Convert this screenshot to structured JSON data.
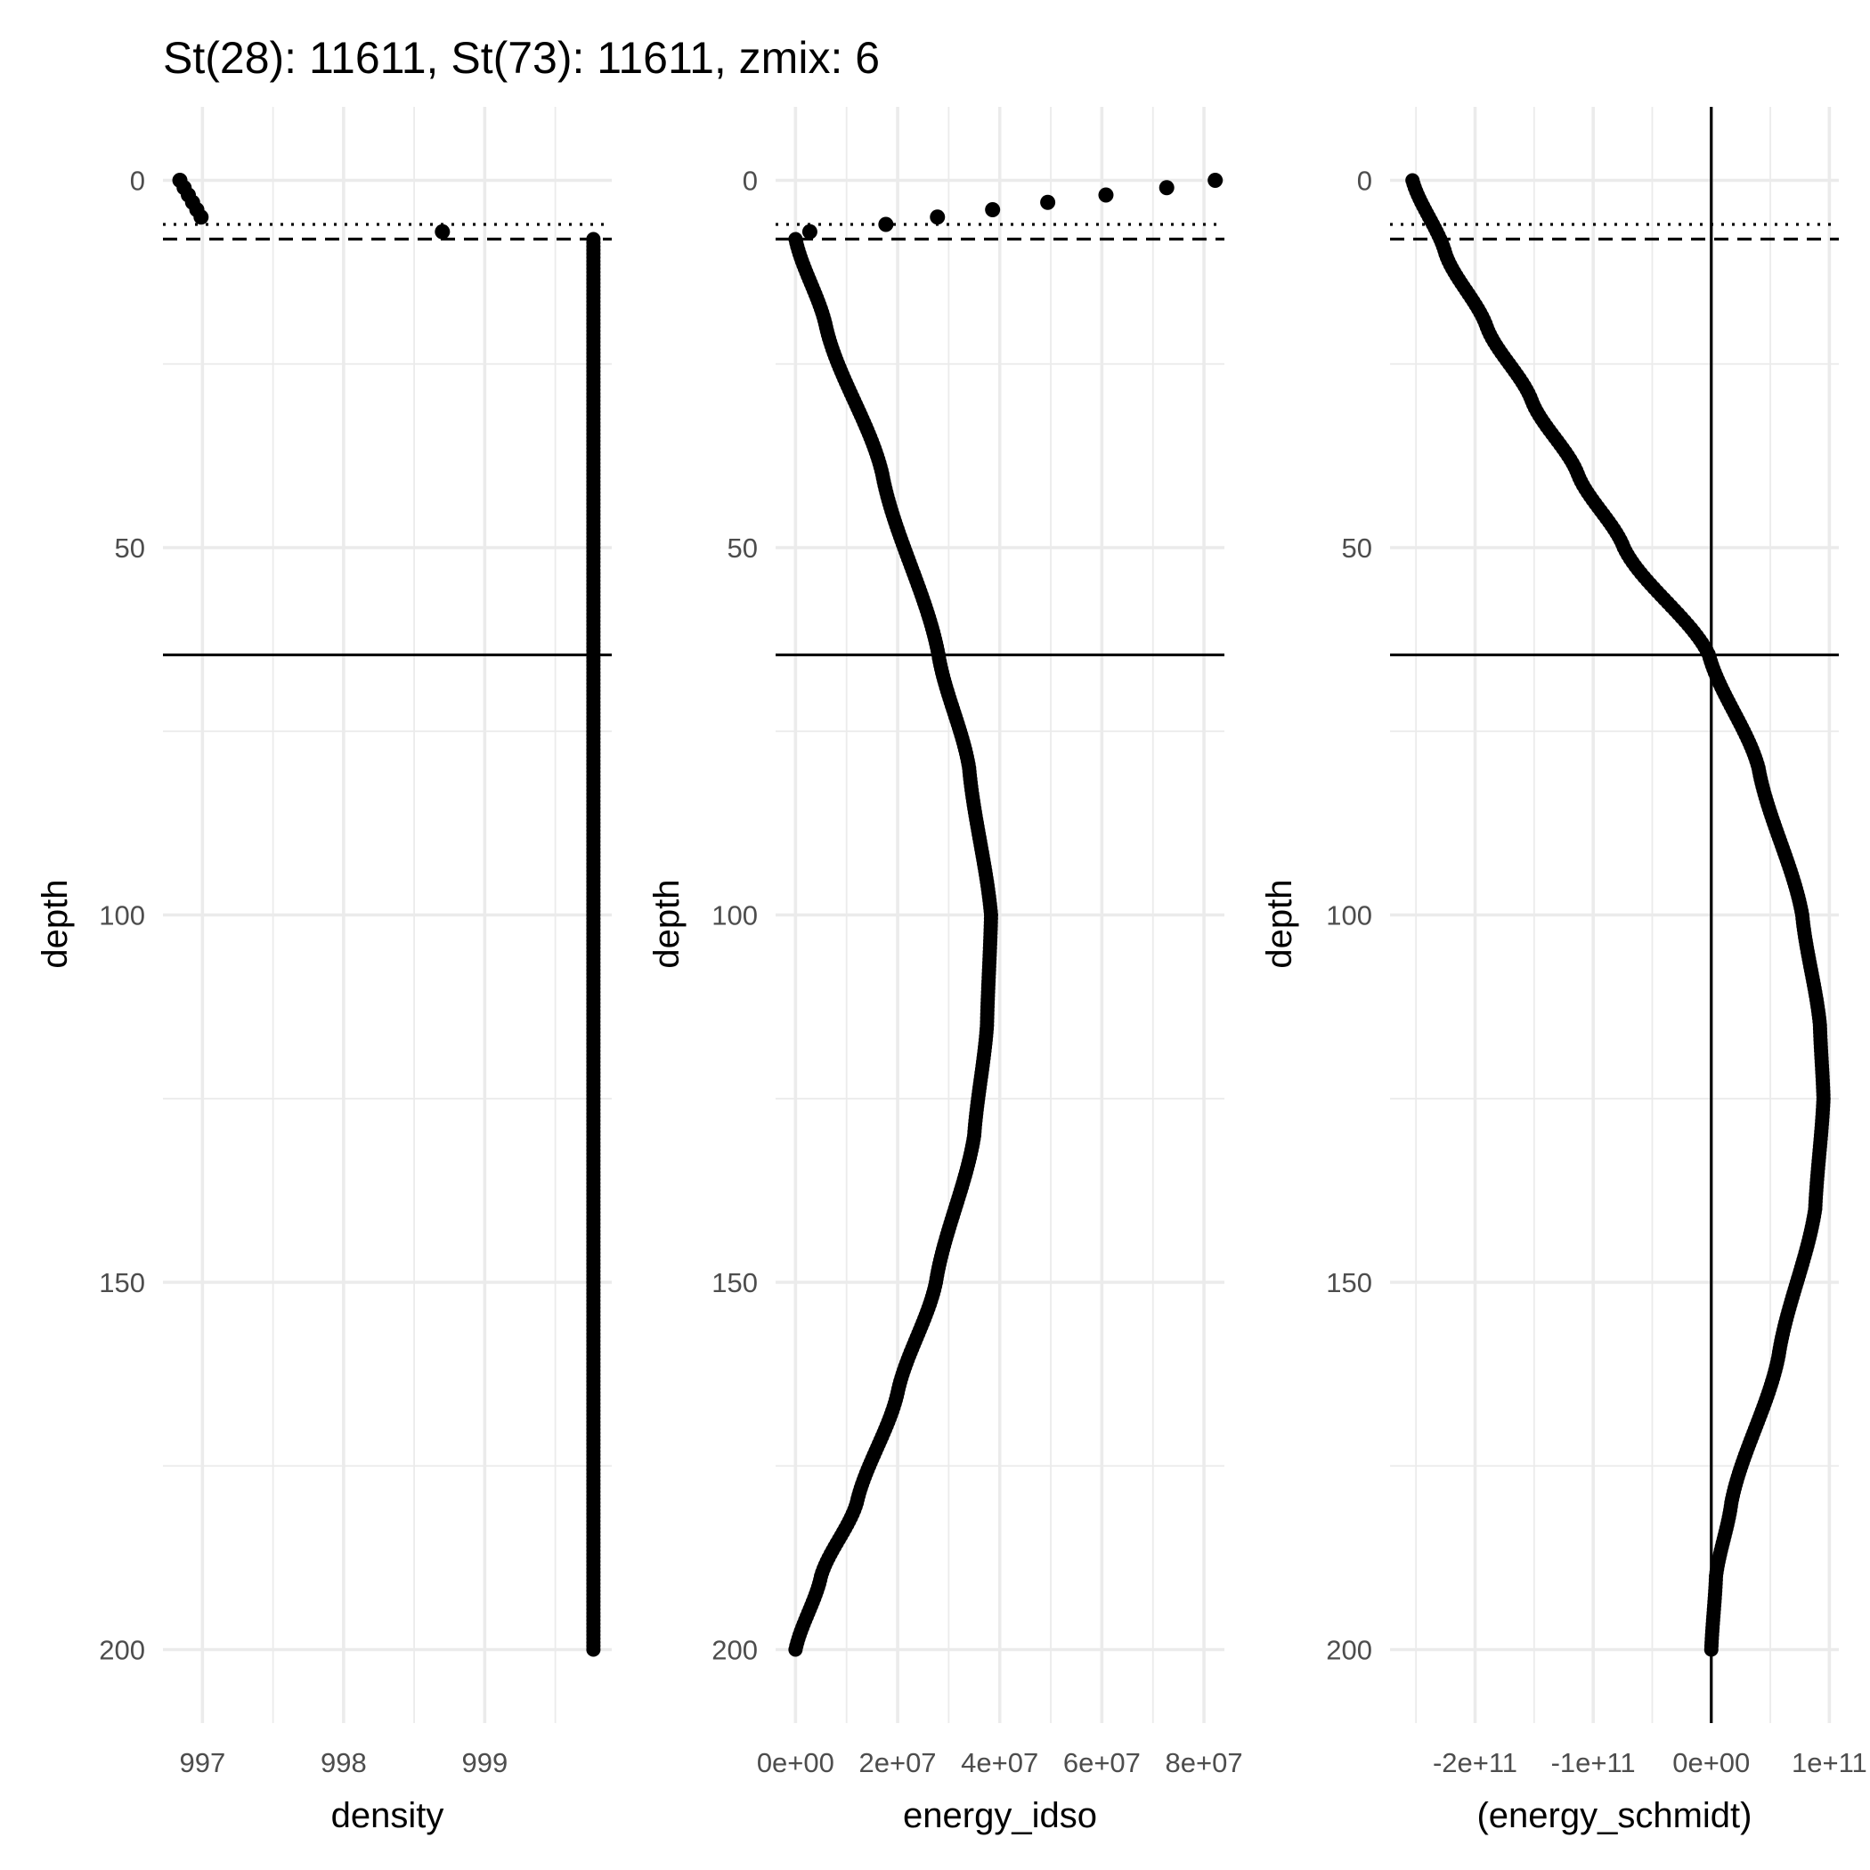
{
  "title": "St(28): 11611, St(73): 11611, zmix: 6",
  "chart_data": [
    {
      "type": "scatter",
      "name": "density",
      "xlabel": "density",
      "ylabel": "depth",
      "x_ticks": [
        997,
        998,
        999
      ],
      "x_tick_labels": [
        "997",
        "998",
        "999"
      ],
      "xlim": [
        996.72,
        999.9
      ],
      "y_ticks": [
        0,
        50,
        100,
        150,
        200
      ],
      "y_tick_labels": [
        "0",
        "50",
        "100",
        "150",
        "200"
      ],
      "ylim": [
        210,
        -10
      ],
      "hlines": [
        {
          "depth": 6,
          "style": "dotted"
        },
        {
          "depth": 8,
          "style": "dashed"
        },
        {
          "depth": 64.6,
          "style": "solid"
        }
      ],
      "vlines": [],
      "points": [
        [
          996.84,
          0
        ],
        [
          996.87,
          1
        ],
        [
          996.9,
          2
        ],
        [
          996.93,
          3
        ],
        [
          996.96,
          4
        ],
        [
          996.99,
          5
        ],
        [
          998.7,
          7
        ]
      ],
      "curve": {
        "kind": "constant",
        "x": 999.77,
        "depth_from": 8,
        "depth_to": 200
      }
    },
    {
      "type": "scatter",
      "name": "energy_idso",
      "xlabel": "energy_idso",
      "ylabel": "depth",
      "x_ticks": [
        0,
        20000000,
        40000000,
        60000000,
        80000000
      ],
      "x_tick_labels": [
        "0e+00",
        "2e+07",
        "4e+07",
        "6e+07",
        "8e+07"
      ],
      "xlim": [
        -3900000,
        84000000
      ],
      "y_ticks": [
        0,
        50,
        100,
        150,
        200
      ],
      "y_tick_labels": [
        "0",
        "50",
        "100",
        "150",
        "200"
      ],
      "ylim": [
        210,
        -10
      ],
      "hlines": [
        {
          "depth": 6,
          "style": "dotted"
        },
        {
          "depth": 8,
          "style": "dashed"
        },
        {
          "depth": 64.6,
          "style": "solid"
        }
      ],
      "vlines": [],
      "points": [
        [
          82200000,
          0
        ],
        [
          72700000,
          1
        ],
        [
          60800000,
          2
        ],
        [
          49400000,
          3
        ],
        [
          38600000,
          4
        ],
        [
          27800000,
          5
        ],
        [
          17700000,
          6
        ],
        [
          2800000,
          7
        ]
      ],
      "curve": {
        "kind": "profile",
        "depth_from": 8,
        "depth_to": 200,
        "knots": [
          [
            8,
            0
          ],
          [
            20,
            6000000
          ],
          [
            40,
            17000000
          ],
          [
            64.6,
            28000000
          ],
          [
            80,
            34000000
          ],
          [
            100,
            38300000
          ],
          [
            115,
            37500000
          ],
          [
            130,
            35000000
          ],
          [
            150,
            27500000
          ],
          [
            165,
            20000000
          ],
          [
            180,
            12000000
          ],
          [
            190,
            5000000
          ],
          [
            200,
            0
          ]
        ]
      }
    },
    {
      "type": "scatter",
      "name": "energy_schmidt",
      "xlabel": "(energy_schmidt)",
      "ylabel": "depth",
      "x_ticks": [
        -200000000000,
        -100000000000,
        0,
        100000000000
      ],
      "x_tick_labels": [
        "-2e+11",
        "-1e+11",
        "0e+00",
        "1e+11"
      ],
      "xlim": [
        -272000000000,
        108000000000
      ],
      "y_ticks": [
        0,
        50,
        100,
        150,
        200
      ],
      "y_tick_labels": [
        "0",
        "50",
        "100",
        "150",
        "200"
      ],
      "ylim": [
        210,
        -10
      ],
      "hlines": [
        {
          "depth": 6,
          "style": "dotted"
        },
        {
          "depth": 8,
          "style": "dashed"
        },
        {
          "depth": 64.6,
          "style": "solid"
        }
      ],
      "vlines": [
        {
          "x": 0,
          "style": "solid"
        }
      ],
      "points": [],
      "curve": {
        "kind": "profile",
        "depth_from": 0,
        "depth_to": 200,
        "knots": [
          [
            0,
            -253000000000
          ],
          [
            10,
            -225000000000
          ],
          [
            20,
            -190000000000
          ],
          [
            30,
            -152000000000
          ],
          [
            40,
            -113000000000
          ],
          [
            50,
            -74000000000
          ],
          [
            64.6,
            -2000000000
          ],
          [
            80,
            40000000000
          ],
          [
            100,
            77000000000
          ],
          [
            115,
            92000000000
          ],
          [
            125,
            95000000000
          ],
          [
            140,
            88000000000
          ],
          [
            160,
            57000000000
          ],
          [
            180,
            17000000000
          ],
          [
            190,
            4000000000
          ],
          [
            200,
            0
          ]
        ]
      }
    }
  ]
}
